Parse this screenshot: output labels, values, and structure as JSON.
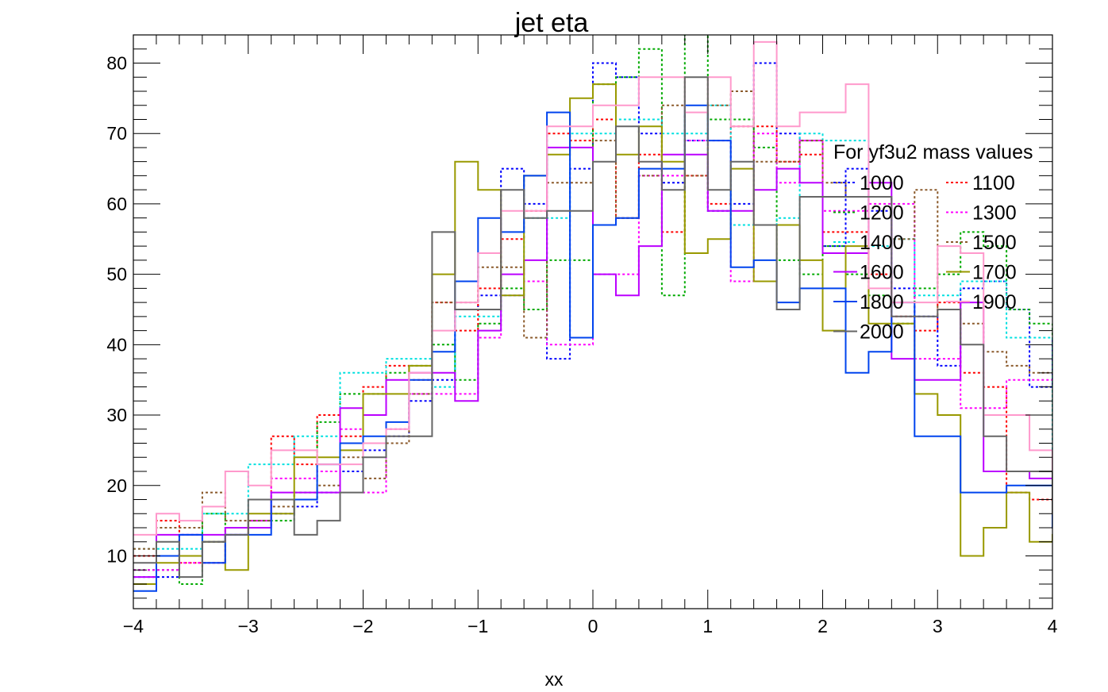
{
  "chart_data": {
    "type": "histogram",
    "title": "jet eta",
    "xlabel": "xx",
    "ylabel": "",
    "xlim": [
      -4,
      4
    ],
    "ylim": [
      2.5,
      84
    ],
    "bin_width": 0.2,
    "x_ticks": [
      -4,
      -3,
      -2,
      -1,
      0,
      1,
      2,
      3,
      4
    ],
    "x_tick_labels": [
      "−4",
      "−3",
      "−2",
      "−1",
      "0",
      "1",
      "2",
      "3",
      "4"
    ],
    "y_ticks": [
      10,
      20,
      30,
      40,
      50,
      60,
      70,
      80
    ],
    "y_tick_labels": [
      "10",
      "20",
      "30",
      "40",
      "50",
      "60",
      "70",
      "80"
    ],
    "grid": false,
    "legend_title": "For yf3u2 mass values",
    "legend_placement": "right",
    "series": [
      {
        "name": "1000",
        "color": "#0000ff",
        "dashed": true,
        "values": [
          7,
          7,
          13,
          12,
          13,
          15,
          16,
          17,
          19,
          22,
          25,
          27,
          32,
          35,
          45,
          47,
          65,
          60,
          38,
          65,
          80,
          78,
          70,
          63,
          69,
          59,
          60,
          80,
          70,
          69,
          54,
          65,
          59,
          48,
          44,
          37,
          48,
          49,
          45,
          34,
          41,
          34,
          27,
          26,
          20,
          20,
          15,
          13,
          9,
          9
        ]
      },
      {
        "name": "1100",
        "color": "#ff0000",
        "dashed": true,
        "values": [
          10,
          15,
          9,
          9,
          14,
          14,
          27,
          23,
          30,
          27,
          34,
          37,
          35,
          46,
          42,
          48,
          55,
          59,
          70,
          69,
          72,
          58,
          67,
          56,
          64,
          60,
          71,
          71,
          66,
          67,
          56,
          56,
          50,
          44,
          42,
          46,
          36,
          34,
          19,
          18,
          23,
          21,
          14,
          14,
          9,
          7,
          5,
          6,
          6,
          3
        ]
      },
      {
        "name": "1200",
        "color": "#00aa00",
        "dashed": true,
        "values": [
          8,
          8,
          6,
          16,
          14,
          15,
          15,
          19,
          29,
          33,
          33,
          36,
          37,
          40,
          35,
          43,
          48,
          45,
          52,
          52,
          77,
          78,
          82,
          47,
          89,
          72,
          72,
          68,
          52,
          50,
          54,
          50,
          47,
          43,
          48,
          50,
          56,
          54,
          45,
          43,
          30,
          28,
          29,
          19,
          24,
          13,
          10,
          11,
          16,
          2
        ]
      },
      {
        "name": "1300",
        "color": "#ff00ff",
        "dashed": true,
        "values": [
          8,
          8,
          9,
          9,
          13,
          15,
          21,
          21,
          22,
          28,
          19,
          28,
          33,
          33,
          33,
          41,
          47,
          49,
          40,
          40,
          50,
          50,
          64,
          64,
          69,
          69,
          49,
          70,
          63,
          69,
          59,
          59,
          60,
          60,
          38,
          38,
          31,
          31,
          35,
          35,
          35,
          28,
          23,
          19,
          16,
          17,
          17,
          12,
          13,
          6
        ]
      },
      {
        "name": "1400",
        "color": "#00e0e0",
        "dashed": true,
        "values": [
          11,
          11,
          11,
          16,
          16,
          23,
          23,
          27,
          27,
          36,
          36,
          38,
          38,
          34,
          44,
          44,
          47,
          58,
          58,
          70,
          70,
          72,
          72,
          70,
          70,
          74,
          57,
          57,
          58,
          70,
          69,
          69,
          54,
          55,
          47,
          47,
          49,
          49,
          41,
          41,
          23,
          20,
          20,
          9,
          13,
          27,
          14,
          15,
          11,
          9
        ]
      },
      {
        "name": "1500",
        "color": "#8b5a2b",
        "dashed": true,
        "values": [
          11,
          14,
          14,
          19,
          15,
          15,
          17,
          18,
          20,
          24,
          21,
          26,
          33,
          46,
          46,
          51,
          51,
          41,
          63,
          63,
          69,
          58,
          64,
          74,
          64,
          74,
          76,
          66,
          66,
          69,
          63,
          61,
          61,
          55,
          62,
          45,
          43,
          39,
          37,
          36,
          36,
          30,
          28,
          24,
          18,
          12,
          12,
          14,
          15,
          14
        ]
      },
      {
        "name": "1600",
        "color": "#bb00ff",
        "dashed": false,
        "values": [
          7,
          13,
          13,
          13,
          14,
          14,
          19,
          19,
          19,
          31,
          30,
          35,
          36,
          36,
          32,
          42,
          50,
          52,
          68,
          68,
          50,
          47,
          54,
          67,
          67,
          59,
          59,
          62,
          65,
          63,
          53,
          53,
          63,
          38,
          35,
          35,
          46,
          22,
          22,
          21,
          20,
          20,
          11,
          11,
          6,
          6,
          17,
          8,
          8,
          8
        ]
      },
      {
        "name": "1700",
        "color": "#999900",
        "dashed": false,
        "values": [
          6,
          9,
          10,
          12,
          8,
          16,
          16,
          24,
          24,
          25,
          33,
          33,
          37,
          50,
          66,
          62,
          47,
          64,
          67,
          75,
          77,
          67,
          71,
          66,
          53,
          55,
          65,
          49,
          57,
          52,
          42,
          54,
          43,
          43,
          33,
          30,
          10,
          14,
          19,
          12,
          13,
          10,
          6,
          5,
          5,
          6,
          7,
          8,
          8,
          8
        ]
      },
      {
        "name": "1800",
        "color": "#0044ee",
        "dashed": false,
        "values": [
          5,
          10,
          13,
          9,
          13,
          13,
          18,
          18,
          23,
          26,
          27,
          29,
          35,
          39,
          49,
          58,
          56,
          64,
          73,
          41,
          57,
          58,
          65,
          65,
          74,
          69,
          51,
          52,
          46,
          48,
          48,
          36,
          39,
          46,
          27,
          27,
          19,
          19,
          20,
          20,
          14,
          11,
          8,
          8,
          7,
          7,
          7,
          7,
          7,
          7
        ]
      },
      {
        "name": "1900",
        "color": "#ff99cc",
        "dashed": false,
        "values": [
          13,
          16,
          15,
          17,
          22,
          20,
          25,
          25,
          23,
          23,
          26,
          28,
          36,
          42,
          46,
          53,
          59,
          59,
          71,
          71,
          74,
          74,
          78,
          78,
          73,
          78,
          71,
          83,
          71,
          73,
          73,
          77,
          48,
          46,
          46,
          54,
          53,
          30,
          30,
          25,
          19,
          21,
          21,
          17,
          14,
          14,
          9,
          5,
          5,
          5
        ]
      },
      {
        "name": "2000",
        "color": "#666666",
        "dashed": false,
        "values": [
          9,
          12,
          7,
          12,
          13,
          18,
          18,
          13,
          15,
          19,
          24,
          27,
          27,
          56,
          45,
          45,
          62,
          58,
          59,
          59,
          66,
          71,
          66,
          62,
          78,
          62,
          66,
          57,
          45,
          61,
          61,
          61,
          61,
          44,
          44,
          45,
          40,
          27,
          22,
          22,
          16,
          13,
          13,
          13,
          7,
          7,
          7,
          7,
          7,
          7
        ]
      }
    ]
  }
}
